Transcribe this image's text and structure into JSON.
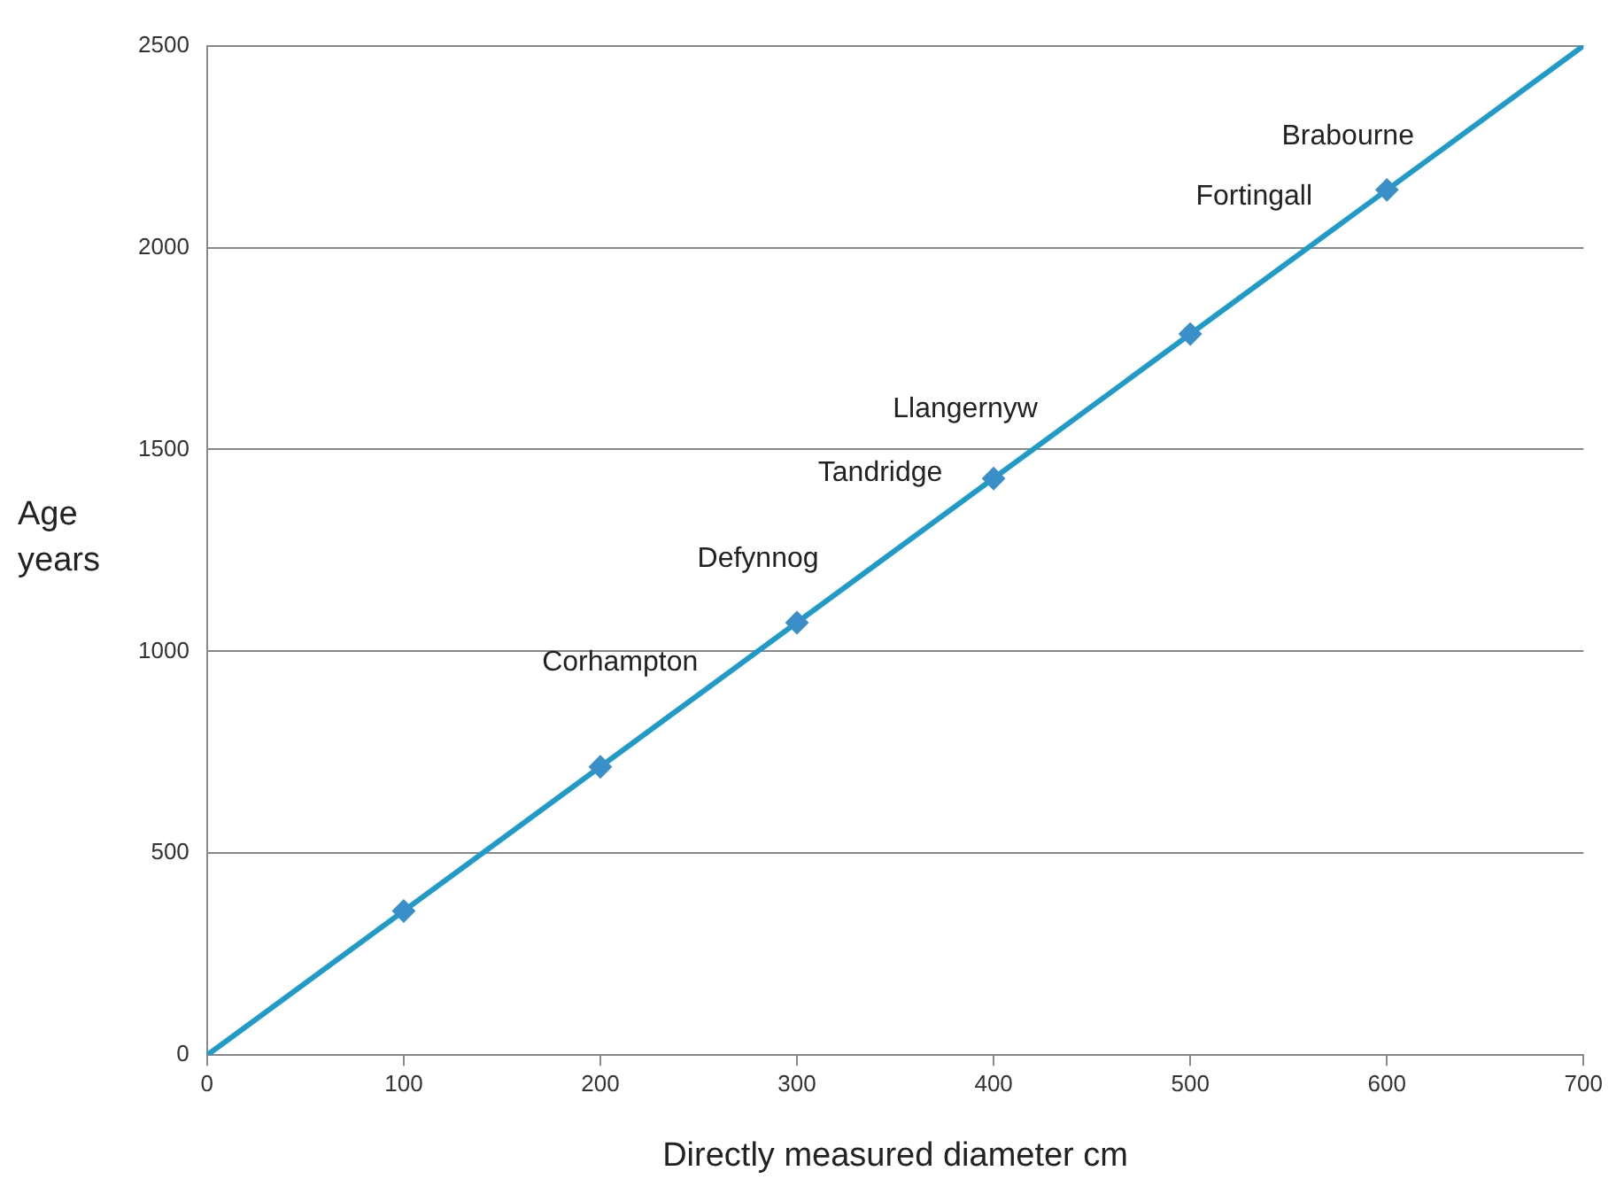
{
  "chart_data": {
    "type": "line",
    "xlabel": "Directly measured diameter cm",
    "ylabel": "Age years",
    "xlim": [
      0,
      700
    ],
    "xticks": [
      0,
      100,
      200,
      300,
      400,
      500,
      600,
      700
    ],
    "ylim": [
      0,
      2500
    ],
    "yticks": [
      0,
      500,
      1000,
      1500,
      2000,
      2500
    ],
    "grid": "y",
    "legend": false,
    "series": [
      {
        "type": "line",
        "color": "#1f9bc9",
        "x": [
          0,
          700
        ],
        "values": [
          0,
          2500
        ],
        "marker": "none",
        "line_style": "solid"
      },
      {
        "type": "scatter",
        "color": "#3a8fc8",
        "x": [
          100,
          200,
          300,
          400,
          500,
          600
        ],
        "values": [
          357,
          714,
          1071,
          1428,
          1786,
          2143
        ],
        "marker": "diamond"
      }
    ],
    "annotations": [
      {
        "text": "Brabourne",
        "x": 600,
        "y": 2143
      },
      {
        "text": "Fortingall",
        "x": 600,
        "y": 2143
      },
      {
        "text": "Llangernyw",
        "x": 400,
        "y": 1428
      },
      {
        "text": "Tandridge",
        "x": 400,
        "y": 1428
      },
      {
        "text": "Defynnog",
        "x": 300,
        "y": 1071
      },
      "Corhampton"
    ]
  }
}
